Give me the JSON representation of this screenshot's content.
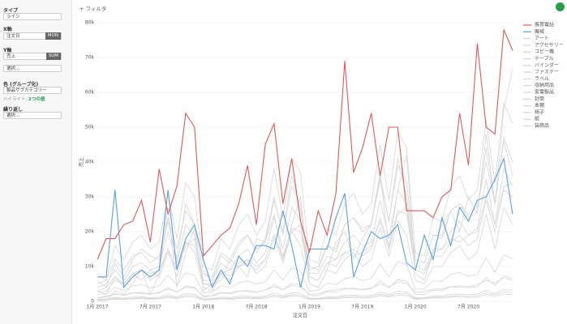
{
  "panel": {
    "type_label": "タイプ",
    "type_value": "ライン",
    "x_label": "X軸",
    "x_field": "注文日",
    "x_agg": "MON",
    "y_label": "Y軸",
    "y_field": "売上",
    "y_agg": "SUM",
    "y_select": "選択...",
    "color_label": "色 (グループ化)",
    "color_field": "製品サブカテゴリー",
    "highlight_label": "ハイライト:",
    "highlight_value": "2つの値",
    "repeat_label": "繰り返し",
    "repeat_select": "選択..."
  },
  "toolbar": {
    "filter": "+ フィルタ"
  },
  "chart_data": {
    "type": "line",
    "x_label": "注文日",
    "y_label": "売上",
    "categories": [
      "1月 2017",
      null,
      null,
      null,
      null,
      null,
      "7月 2017",
      null,
      null,
      null,
      null,
      null,
      "1月 2018",
      null,
      null,
      null,
      null,
      null,
      "7月 2018",
      null,
      null,
      null,
      null,
      null,
      "1月 2019",
      null,
      null,
      null,
      null,
      null,
      "7月 2019",
      null,
      null,
      null,
      null,
      null,
      "1月 2020",
      null,
      null,
      null,
      null,
      null,
      "7月 2020",
      null,
      null,
      null,
      null,
      null
    ],
    "ylim": [
      0,
      80000
    ],
    "yticks": [
      0,
      {
        "value": 10000,
        "label": "10k"
      },
      {
        "value": 20000,
        "label": "20k"
      },
      {
        "value": 30000,
        "label": "30k"
      },
      {
        "value": 40000,
        "label": "40k"
      },
      {
        "value": 50000,
        "label": "50k"
      },
      {
        "value": 60000,
        "label": "60k"
      },
      {
        "value": 70000,
        "label": "70k"
      },
      {
        "value": 80000,
        "label": "80k"
      }
    ],
    "grid": true,
    "series": [
      {
        "name": "携帯電話",
        "color": "#e05a57",
        "values": [
          12000,
          18000,
          18000,
          22000,
          23000,
          29000,
          17000,
          38000,
          25000,
          33000,
          54000,
          50000,
          13000,
          16000,
          19000,
          21000,
          28000,
          39000,
          22000,
          45000,
          51000,
          28000,
          41000,
          23000,
          14000,
          26000,
          19000,
          31000,
          69000,
          37000,
          44000,
          54000,
          36000,
          50000,
          50000,
          26000,
          26000,
          26000,
          24000,
          30000,
          32000,
          54000,
          39000,
          74000,
          50000,
          48000,
          78000,
          72000
        ]
      },
      {
        "name": "機械",
        "color": "#5aa0e0",
        "values": [
          7000,
          7000,
          32000,
          4000,
          7000,
          9000,
          7000,
          9000,
          32000,
          9000,
          18000,
          22000,
          12000,
          4000,
          9000,
          5000,
          13000,
          10000,
          16000,
          16000,
          15000,
          26000,
          16000,
          4000,
          15000,
          15000,
          15000,
          24000,
          31000,
          7000,
          14000,
          20000,
          18000,
          19000,
          22000,
          11000,
          9000,
          19000,
          12000,
          24000,
          16000,
          27000,
          23000,
          29000,
          30000,
          35000,
          41000,
          25000
        ]
      },
      {
        "name": "アート",
        "color": "#d6d6d6",
        "values": [
          1000,
          1500,
          2000,
          1800,
          2500,
          2200,
          2000,
          2600,
          3500,
          2800,
          4000,
          3800,
          1500,
          1800,
          2500,
          2400,
          3000,
          2800,
          2600,
          3200,
          4200,
          3400,
          4600,
          4200,
          2000,
          2200,
          3000,
          3300,
          3800,
          3500,
          3400,
          3800,
          5000,
          4200,
          5500,
          5200,
          2600,
          2800,
          3500,
          3600,
          4200,
          4000,
          4200,
          4800,
          6000,
          5200,
          6800,
          6000
        ]
      },
      {
        "name": "アクセサリー",
        "color": "#d6d6d6",
        "values": [
          2500,
          3000,
          6000,
          5000,
          8000,
          6000,
          9000,
          7000,
          14000,
          9000,
          16000,
          18000,
          5000,
          4500,
          8000,
          9000,
          10000,
          11000,
          9000,
          12000,
          19000,
          12000,
          20000,
          22000,
          7000,
          6000,
          11000,
          12000,
          14000,
          13000,
          14000,
          16000,
          23000,
          15000,
          25000,
          27000,
          9000,
          8000,
          14000,
          15000,
          18000,
          17000,
          19000,
          20000,
          30000,
          22000,
          33000,
          34000
        ]
      },
      {
        "name": "コピー機",
        "color": "#d6d6d6",
        "values": [
          0,
          0,
          3000,
          2000,
          5000,
          9000,
          2000,
          8000,
          27000,
          4000,
          14000,
          21000,
          3000,
          5000,
          6000,
          12000,
          10000,
          7000,
          18000,
          17000,
          25000,
          12000,
          22000,
          30000,
          5000,
          4000,
          9000,
          17000,
          20000,
          12000,
          18000,
          22000,
          37000,
          15000,
          32000,
          42000,
          8000,
          6000,
          14000,
          22000,
          26000,
          20000,
          30000,
          25000,
          48000,
          28000,
          55000,
          67000
        ]
      },
      {
        "name": "テーブル",
        "color": "#d6d6d6",
        "values": [
          6000,
          4000,
          11000,
          7000,
          12000,
          15000,
          13000,
          12000,
          23000,
          12000,
          28000,
          22000,
          8000,
          6000,
          13000,
          11000,
          16000,
          19000,
          15000,
          17000,
          29000,
          20000,
          36000,
          26000,
          10000,
          9000,
          16000,
          14000,
          22000,
          24000,
          21000,
          22000,
          35000,
          23000,
          41000,
          30000,
          12000,
          11000,
          19000,
          18000,
          26000,
          28000,
          25000,
          27000,
          40000,
          28000,
          46000,
          36000
        ]
      },
      {
        "name": "バインダー",
        "color": "#d6d6d6",
        "values": [
          3000,
          4000,
          7000,
          5000,
          8000,
          9000,
          8000,
          9000,
          15000,
          10000,
          17000,
          16000,
          5000,
          5000,
          9000,
          7000,
          11000,
          12000,
          10000,
          12000,
          19000,
          13000,
          21000,
          20000,
          7000,
          6000,
          11000,
          10000,
          14000,
          15000,
          13000,
          15000,
          24000,
          16000,
          26000,
          25000,
          9000,
          8000,
          13000,
          13000,
          17000,
          19000,
          16000,
          18000,
          29000,
          20000,
          32000,
          30000
        ]
      },
      {
        "name": "ファスナー",
        "color": "#d6d6d6",
        "values": [
          300,
          400,
          600,
          500,
          700,
          800,
          600,
          700,
          1200,
          800,
          1300,
          1200,
          400,
          500,
          700,
          600,
          800,
          900,
          800,
          900,
          1400,
          1000,
          1500,
          1400,
          500,
          600,
          800,
          800,
          1000,
          1100,
          900,
          1000,
          1700,
          1200,
          1800,
          1600,
          600,
          700,
          1000,
          900,
          1200,
          1300,
          1100,
          1200,
          2000,
          1400,
          2100,
          1900
        ]
      },
      {
        "name": "ラベル",
        "color": "#d6d6d6",
        "values": [
          400,
          500,
          800,
          700,
          900,
          1000,
          800,
          900,
          1500,
          1000,
          1700,
          1600,
          500,
          600,
          900,
          800,
          1000,
          1100,
          1000,
          1200,
          1800,
          1300,
          1900,
          1800,
          700,
          700,
          1000,
          1000,
          1300,
          1400,
          1200,
          1300,
          2100,
          1500,
          2300,
          2100,
          800,
          900,
          1200,
          1200,
          1500,
          1700,
          1400,
          1600,
          2500,
          1800,
          2700,
          2500
        ]
      },
      {
        "name": "収納用品",
        "color": "#d6d6d6",
        "values": [
          5000,
          6000,
          12000,
          9000,
          13000,
          14000,
          11000,
          13000,
          24000,
          15000,
          26000,
          22000,
          8000,
          7000,
          14000,
          12000,
          17000,
          19000,
          14000,
          18000,
          30000,
          19000,
          33000,
          28000,
          9000,
          10000,
          16000,
          15000,
          22000,
          24000,
          20000,
          22000,
          36000,
          23000,
          39000,
          34000,
          12000,
          11000,
          19000,
          19000,
          26000,
          28000,
          24000,
          26000,
          44000,
          28000,
          47000,
          40000
        ]
      },
      {
        "name": "家電製品",
        "color": "#d6d6d6",
        "values": [
          4000,
          5000,
          9000,
          6000,
          10000,
          11000,
          9000,
          10000,
          20000,
          11000,
          22000,
          19000,
          6000,
          6000,
          11000,
          9000,
          13000,
          15000,
          11000,
          14000,
          24000,
          15000,
          27000,
          23000,
          8000,
          8000,
          13000,
          12000,
          17000,
          19000,
          16000,
          17000,
          29000,
          18000,
          32000,
          28000,
          10000,
          9000,
          15000,
          15000,
          20000,
          23000,
          19000,
          21000,
          35000,
          22000,
          38000,
          33000
        ]
      },
      {
        "name": "封筒",
        "color": "#d6d6d6",
        "values": [
          600,
          700,
          1100,
          900,
          1200,
          1300,
          1000,
          1200,
          2000,
          1300,
          2200,
          2000,
          700,
          800,
          1200,
          1100,
          1400,
          1500,
          1300,
          1500,
          2400,
          1600,
          2500,
          2300,
          900,
          900,
          1300,
          1300,
          1700,
          1800,
          1600,
          1700,
          2700,
          1900,
          2900,
          2700,
          1000,
          1100,
          1500,
          1500,
          2000,
          2100,
          1900,
          2000,
          3200,
          2200,
          3400,
          3100
        ]
      },
      {
        "name": "本棚",
        "color": "#d6d6d6",
        "values": [
          3000,
          2000,
          7000,
          4000,
          8000,
          9000,
          6000,
          8000,
          15000,
          7000,
          17000,
          14000,
          4000,
          3000,
          8000,
          6000,
          10000,
          12000,
          8000,
          10000,
          18000,
          11000,
          20000,
          16000,
          5000,
          4000,
          9000,
          8000,
          12000,
          14000,
          10000,
          12000,
          21000,
          13000,
          23000,
          19000,
          6000,
          5000,
          10000,
          10000,
          14000,
          16000,
          12000,
          14000,
          25000,
          15000,
          27000,
          22000
        ]
      },
      {
        "name": "椅子",
        "color": "#d6d6d6",
        "values": [
          8000,
          6000,
          16000,
          12000,
          17000,
          19000,
          15000,
          17000,
          31000,
          18000,
          34000,
          30000,
          10000,
          9000,
          18000,
          15000,
          22000,
          25000,
          19000,
          23000,
          38000,
          24000,
          41000,
          37000,
          12000,
          11000,
          21000,
          19000,
          28000,
          31000,
          25000,
          28000,
          45000,
          29000,
          49000,
          44000,
          14000,
          13000,
          24000,
          23000,
          33000,
          36000,
          29000,
          32000,
          52000,
          34000,
          57000,
          51000
        ]
      },
      {
        "name": "紙",
        "color": "#d6d6d6",
        "values": [
          1000,
          1200,
          2200,
          1700,
          2400,
          2600,
          2100,
          2400,
          4000,
          2600,
          4400,
          4000,
          1300,
          1400,
          2500,
          2100,
          2900,
          3200,
          2700,
          3100,
          4900,
          3300,
          5200,
          4800,
          1600,
          1700,
          2800,
          2600,
          3500,
          3800,
          3300,
          3600,
          5800,
          3900,
          6200,
          5700,
          1900,
          2000,
          3200,
          3100,
          4200,
          4500,
          3900,
          4200,
          6800,
          4500,
          7300,
          6600
        ]
      },
      {
        "name": "装飾品",
        "color": "#d6d6d6",
        "values": [
          2000,
          2200,
          4000,
          3100,
          4400,
          4800,
          3800,
          4400,
          7500,
          4800,
          8200,
          7400,
          2400,
          2600,
          4500,
          3900,
          5300,
          5900,
          4900,
          5600,
          9000,
          6100,
          9600,
          8800,
          2900,
          3100,
          5200,
          4800,
          6500,
          7000,
          6000,
          6600,
          10700,
          7100,
          11400,
          10500,
          3400,
          3600,
          5900,
          5700,
          7700,
          8300,
          7200,
          7800,
          12500,
          8300,
          13400,
          12200
        ]
      }
    ]
  }
}
